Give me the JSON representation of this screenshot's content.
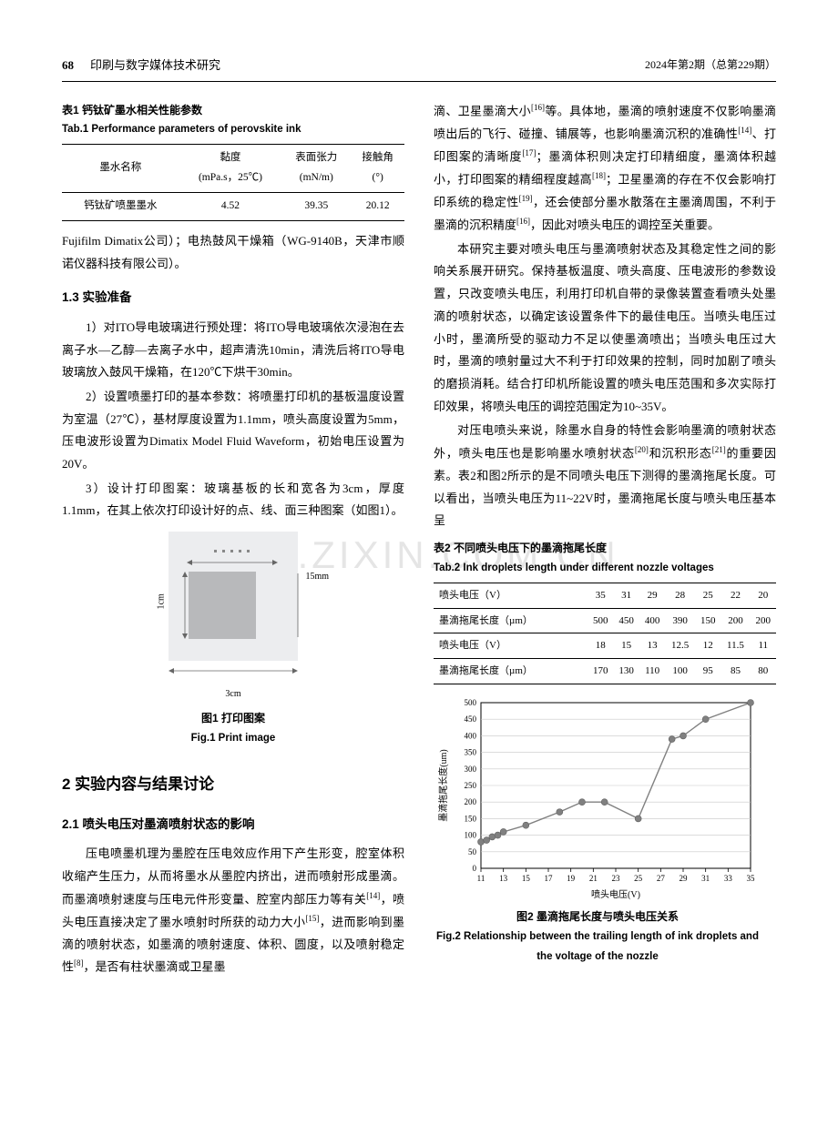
{
  "header": {
    "page_number": "68",
    "journal_name": "印刷与数字媒体技术研究",
    "issue_info": "2024年第2期（总第229期）"
  },
  "table1": {
    "caption_cn": "表1 钙钛矿墨水相关性能参数",
    "caption_en": "Tab.1 Performance parameters of perovskite ink",
    "headers": [
      "墨水名称",
      "黏度\n(mPa.s，25℃)",
      "表面张力\n(mN/m)",
      "接触角\n(°)"
    ],
    "row": [
      "钙钛矿喷墨墨水",
      "4.52",
      "39.35",
      "20.12"
    ]
  },
  "left_body": {
    "p1": "Fujifilm Dimatix公司）；电热鼓风干燥箱（WG-9140B，天津市顺诺仪器科技有限公司）。",
    "h1_3": "1.3 实验准备",
    "p2": "1）对ITO导电玻璃进行预处理：将ITO导电玻璃依次浸泡在去离子水—乙醇—去离子水中，超声清洗10min，清洗后将ITO导电玻璃放入鼓风干燥箱，在120℃下烘干30min。",
    "p3": "2）设置喷墨打印的基本参数：将喷墨打印机的基板温度设置为室温（27℃），基材厚度设置为1.1mm，喷头高度设置为5mm，压电波形设置为Dimatix Model Fluid Waveform，初始电压设置为20V。",
    "p4": "3）设计打印图案：玻璃基板的长和宽各为3cm，厚度1.1mm，在其上依次打印设计好的点、线、面三种图案（如图1）。",
    "fig1": {
      "dim_right": "15mm",
      "dim_left": "1cm",
      "dim_bottom": "3cm",
      "caption_cn": "图1 打印图案",
      "caption_en": "Fig.1 Print image"
    },
    "sec2": "2 实验内容与结果讨论",
    "sec2_1": "2.1 喷头电压对墨滴喷射状态的影响",
    "p5": "压电喷墨机理为墨腔在压电效应作用下产生形变，腔室体积收缩产生压力，从而将墨水从墨腔内挤出，进而喷射形成墨滴。而墨滴喷射速度与压电元件形变量、腔室内部压力等有关[14]，喷头电压直接决定了墨水喷射时所获的动力大小[15]，进而影响到墨滴的喷射状态，如墨滴的喷射速度、体积、圆度，以及喷射稳定性[8]，是否有柱状墨滴或卫星墨"
  },
  "right_body": {
    "p1": "滴、卫星墨滴大小[16]等。具体地，墨滴的喷射速度不仅影响墨滴喷出后的飞行、碰撞、铺展等，也影响墨滴沉积的准确性[14]、打印图案的清晰度[17]；墨滴体积则决定打印精细度，墨滴体积越小，打印图案的精细程度越高[18]；卫星墨滴的存在不仅会影响打印系统的稳定性[19]，还会使部分墨水散落在主墨滴周围，不利于墨滴的沉积精度[16]，因此对喷头电压的调控至关重要。",
    "p2": "本研究主要对喷头电压与墨滴喷射状态及其稳定性之间的影响关系展开研究。保持基板温度、喷头高度、压电波形的参数设置，只改变喷头电压，利用打印机自带的录像装置查看喷头处墨滴的喷射状态，以确定该设置条件下的最佳电压。当喷头电压过小时，墨滴所受的驱动力不足以使墨滴喷出；当喷头电压过大时，墨滴的喷射量过大不利于打印效果的控制，同时加剧了喷头的磨损消耗。结合打印机所能设置的喷头电压范围和多次实际打印效果，将喷头电压的调控范围定为10~35V。",
    "p3": "对压电喷头来说，除墨水自身的特性会影响墨滴的喷射状态外，喷头电压也是影响墨水喷射状态[20]和沉积形态[21]的重要因素。表2和图2所示的是不同喷头电压下测得的墨滴拖尾长度。可以看出，当喷头电压为11~22V时，墨滴拖尾长度与喷头电压基本呈"
  },
  "table2": {
    "caption_cn": "表2 不同喷头电压下的墨滴拖尾长度",
    "caption_en": "Tab.2 Ink droplets length under different nozzle voltages",
    "row1_h": "喷头电压（V）",
    "row1_v": [
      "35",
      "31",
      "29",
      "28",
      "25",
      "22",
      "20"
    ],
    "row2_h": "墨滴拖尾长度（µm）",
    "row2_v": [
      "500",
      "450",
      "400",
      "390",
      "150",
      "200",
      "200"
    ],
    "row3_h": "喷头电压（V）",
    "row3_v": [
      "18",
      "15",
      "13",
      "12.5",
      "12",
      "11.5",
      "11"
    ],
    "row4_h": "墨滴拖尾长度（µm）",
    "row4_v": [
      "170",
      "130",
      "110",
      "100",
      "95",
      "85",
      "80"
    ]
  },
  "chart": {
    "type": "line",
    "title_cn": "图2 墨滴拖尾长度与喷头电压关系",
    "title_en": "Fig.2 Relationship between the trailing length of ink droplets and the voltage of the nozzle",
    "xlabel": "喷头电压(V)",
    "ylabel": "墨滴拖尾长度(um)",
    "xlim": [
      11,
      35
    ],
    "ylim": [
      0,
      500
    ],
    "xtick_step": 2,
    "ytick_step": 50,
    "x_values": [
      11,
      11.5,
      12,
      12.5,
      13,
      15,
      18,
      20,
      22,
      25,
      28,
      29,
      31,
      35
    ],
    "y_values": [
      80,
      85,
      95,
      100,
      110,
      130,
      170,
      200,
      200,
      150,
      390,
      400,
      450,
      500
    ],
    "line_color": "#808080",
    "marker_color": "#808080",
    "marker_style": "circle",
    "marker_size": 3.5,
    "background_color": "#ffffff",
    "grid_color": "#c8c8c8",
    "axis_color": "#000000",
    "label_fontsize": 10,
    "tick_fontsize": 9
  },
  "watermark": "WWW.ZIXIN.COM.CN"
}
